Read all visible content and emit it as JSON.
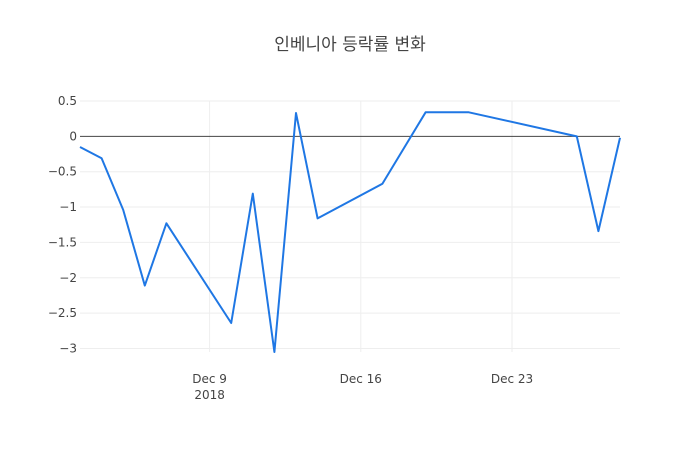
{
  "chart_data": {
    "type": "line",
    "title": "인베니아 등락률 변화",
    "xlabel": "",
    "ylabel": "",
    "x_ticks": [
      {
        "date": "2018-12-09",
        "label": "Dec 9",
        "sublabel": "2018"
      },
      {
        "date": "2018-12-16",
        "label": "Dec 16",
        "sublabel": ""
      },
      {
        "date": "2018-12-23",
        "label": "Dec 23",
        "sublabel": ""
      }
    ],
    "y_ticks": [
      0.5,
      0,
      -0.5,
      -1,
      -1.5,
      -2,
      -2.5,
      -3
    ],
    "y_tick_labels": [
      "0.5",
      "0",
      "−0.5",
      "−1",
      "−1.5",
      "−2",
      "−2.5",
      "−3"
    ],
    "xlim": [
      "2018-12-03",
      "2018-12-28"
    ],
    "ylim": [
      -3.05,
      0.5
    ],
    "grid": true,
    "zero_line": true,
    "line_color": "#1f77e4",
    "series": [
      {
        "x": [
          "2018-12-03",
          "2018-12-04",
          "2018-12-05",
          "2018-12-06",
          "2018-12-07",
          "2018-12-10",
          "2018-12-11",
          "2018-12-12",
          "2018-12-13",
          "2018-12-14",
          "2018-12-17",
          "2018-12-19",
          "2018-12-21",
          "2018-12-26",
          "2018-12-27",
          "2018-12-28"
        ],
        "y": [
          -0.15,
          -0.31,
          -1.04,
          -2.11,
          -1.23,
          -2.64,
          -0.81,
          -3.05,
          0.33,
          -1.16,
          -0.67,
          0.34,
          0.34,
          0.0,
          -1.34,
          -0.02
        ]
      }
    ]
  }
}
